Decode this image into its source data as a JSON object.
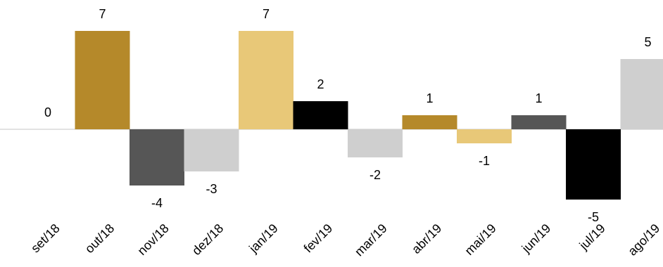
{
  "chart_data": {
    "type": "bar",
    "categories": [
      "set/18",
      "out/18",
      "nov/18",
      "dez/18",
      "jan/19",
      "fev/19",
      "mar/19",
      "abr/19",
      "mai/19",
      "jun/19",
      "jul/19",
      "ago/19"
    ],
    "values": [
      0,
      7,
      -4,
      -3,
      7,
      2,
      -2,
      1,
      -1,
      1,
      -5,
      5
    ],
    "colors": [
      "#b5892a",
      "#b5892a",
      "#565656",
      "#cfcfcf",
      "#e8c878",
      "#000000",
      "#cfcfcf",
      "#b5892a",
      "#e8c878",
      "#565656",
      "#000000",
      "#cfcfcf"
    ],
    "axis_line_color": "#d9d9d9",
    "title": "",
    "xlabel": "",
    "ylabel": "",
    "grid": false,
    "legend": "none",
    "ylim": [
      -5,
      7
    ],
    "x_tick_rotation": "45deg"
  }
}
